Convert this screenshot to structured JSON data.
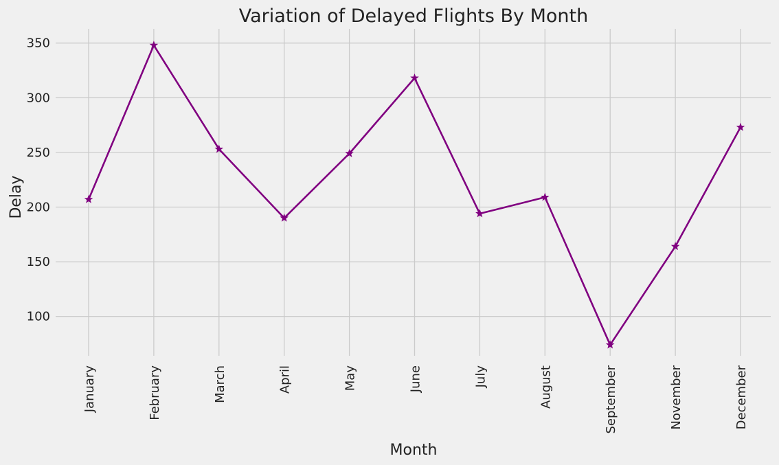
{
  "chart_data": {
    "type": "line",
    "title": "Variation of Delayed Flights By Month",
    "xlabel": "Month",
    "ylabel": "Delay",
    "categories": [
      "January",
      "February",
      "March",
      "April",
      "May",
      "June",
      "July",
      "August",
      "September",
      "November",
      "December"
    ],
    "series": [
      {
        "values": [
          207,
          348,
          253,
          190,
          249,
          318,
          194,
          209,
          74,
          164,
          273
        ],
        "color": "#800080",
        "marker": "star"
      }
    ],
    "yticks": [
      100,
      150,
      200,
      250,
      300,
      350
    ],
    "ylim": [
      64,
      363
    ],
    "grid": true,
    "background": "#f0f0f0"
  }
}
